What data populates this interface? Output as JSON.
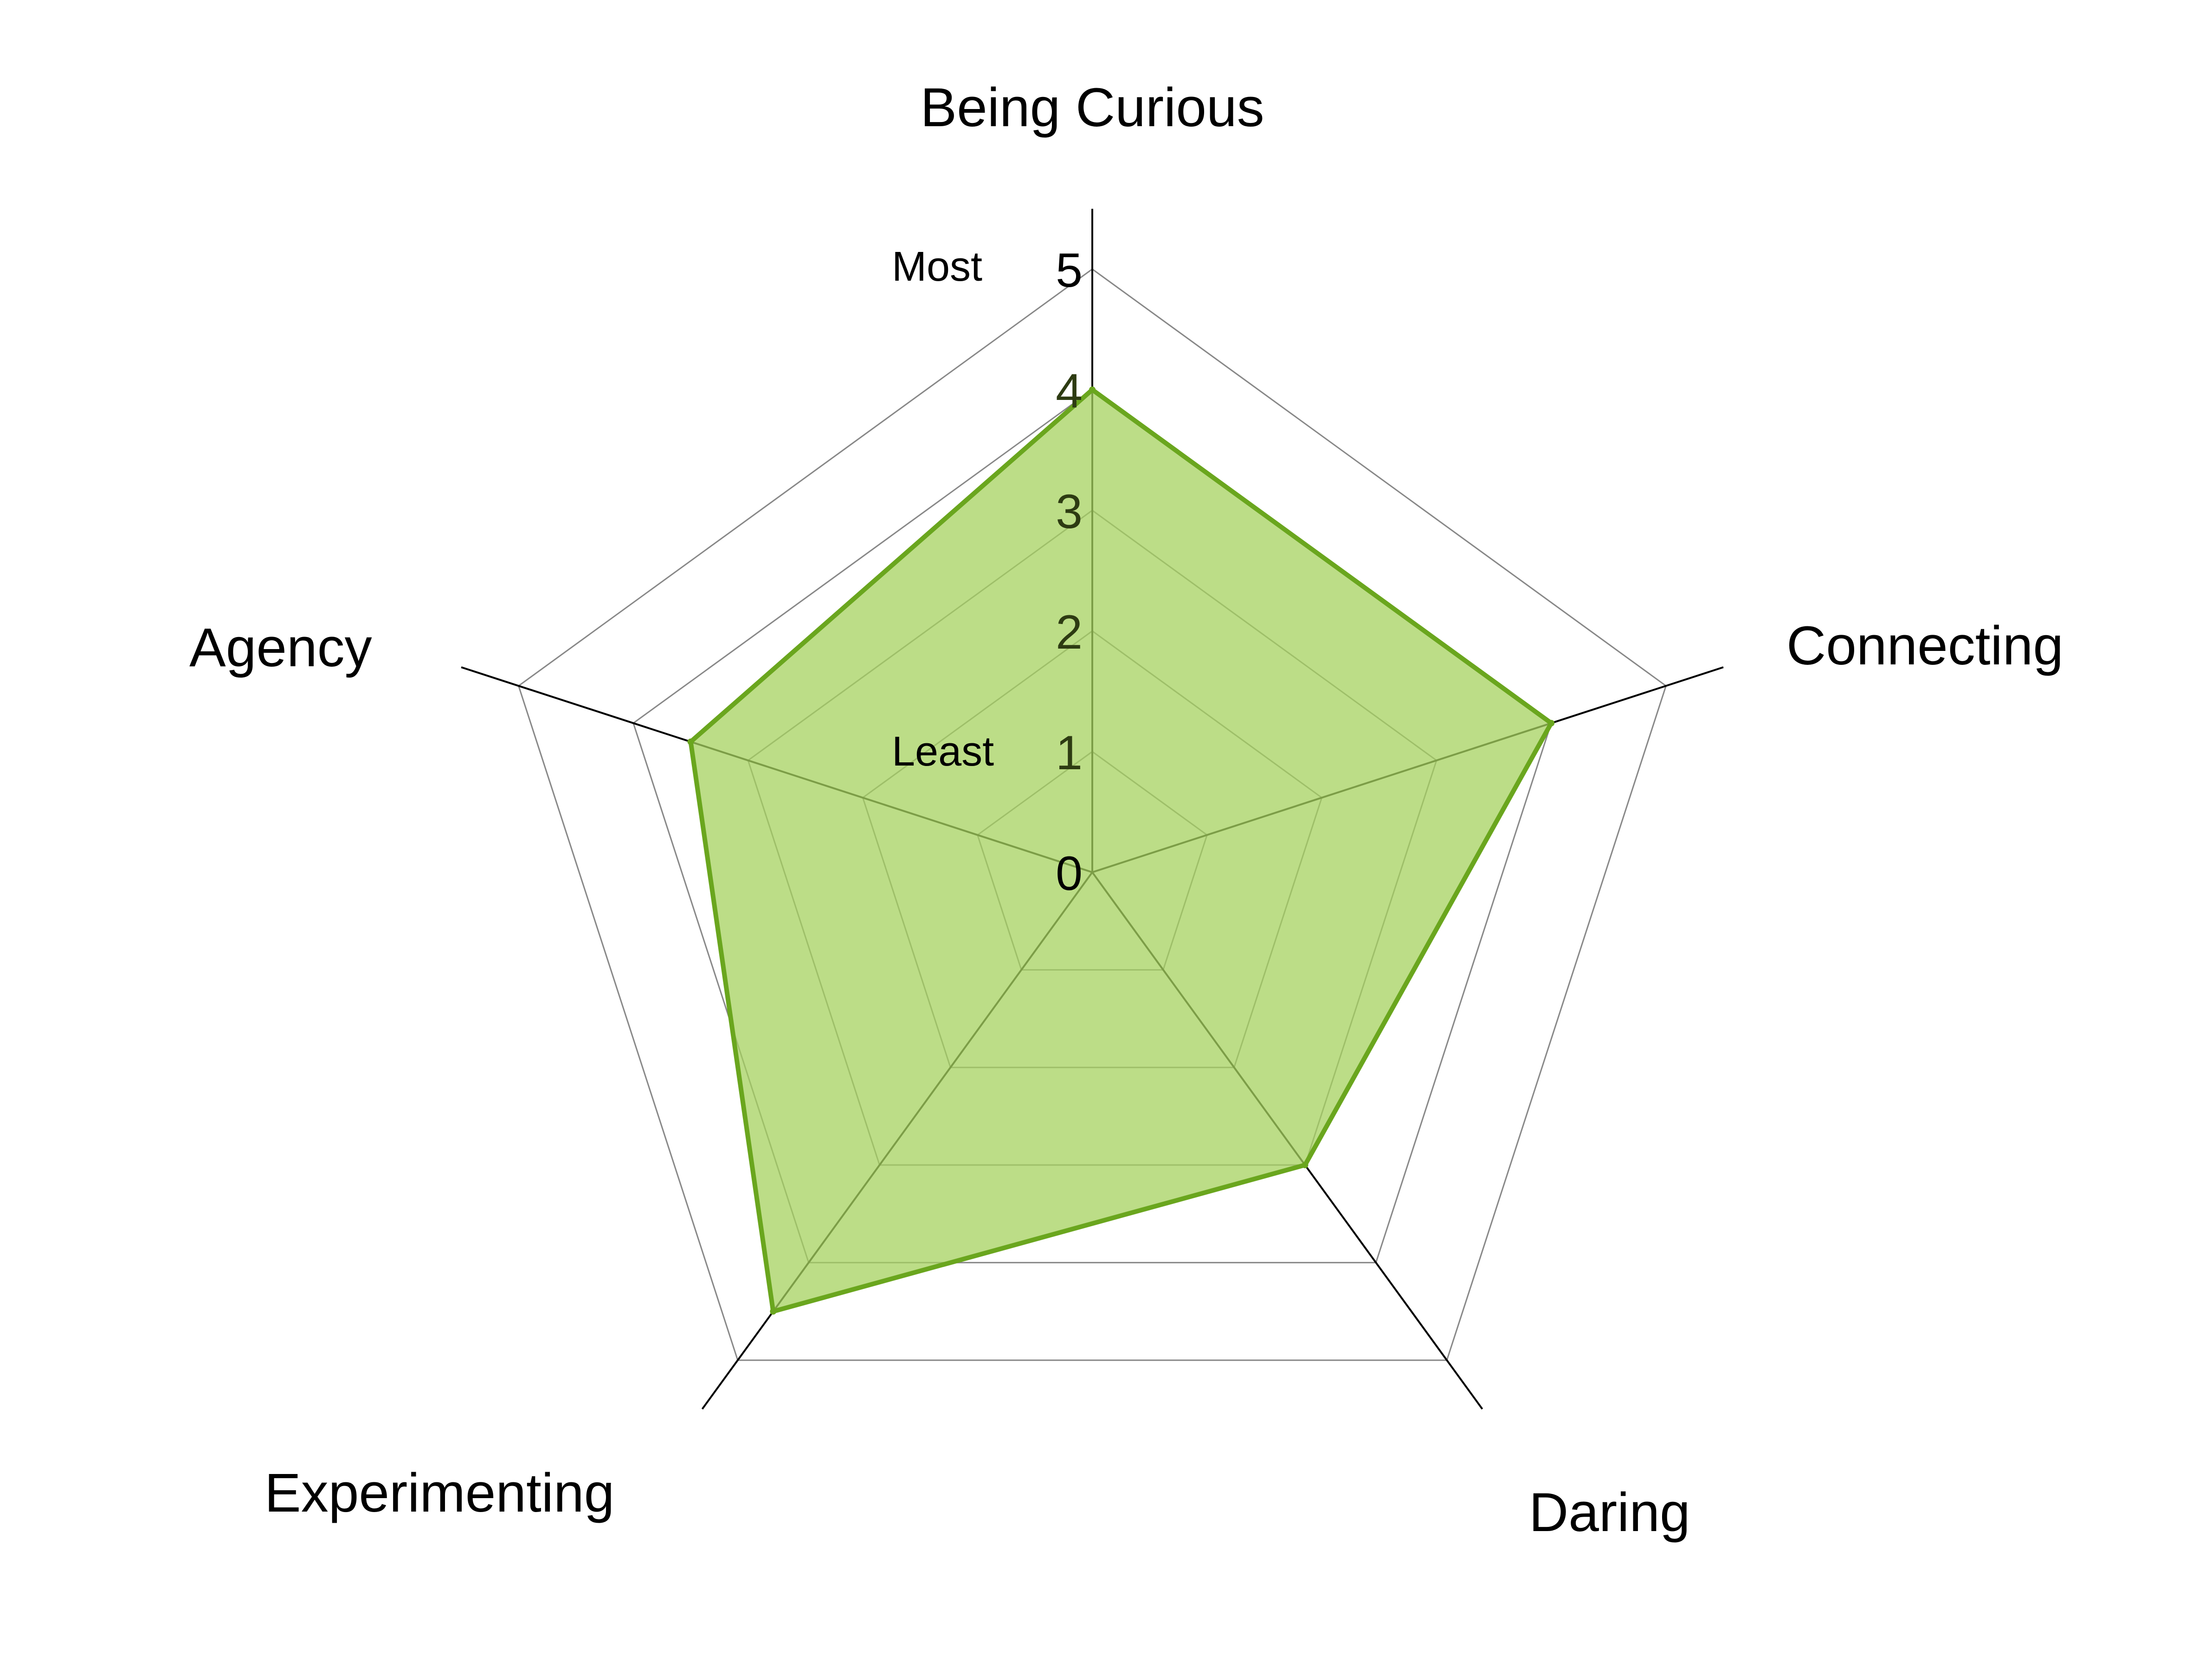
{
  "chart_data": {
    "type": "radar",
    "axes": [
      "Being Curious",
      "Connecting",
      "Daring",
      "Experimenting",
      "Agency"
    ],
    "series": [
      {
        "values": [
          4,
          4,
          3,
          4.5,
          3.5
        ]
      }
    ],
    "r_range": [
      0,
      5
    ],
    "ticks": [
      "0",
      "1",
      "2",
      "3",
      "4",
      "5"
    ],
    "annotations": {
      "min_label": "Least",
      "max_label": "Most"
    },
    "grid": true,
    "colors": {
      "fill": "#a6d15f",
      "line": "#6aa61e",
      "grid": "#888888",
      "spoke": "#000000"
    }
  }
}
